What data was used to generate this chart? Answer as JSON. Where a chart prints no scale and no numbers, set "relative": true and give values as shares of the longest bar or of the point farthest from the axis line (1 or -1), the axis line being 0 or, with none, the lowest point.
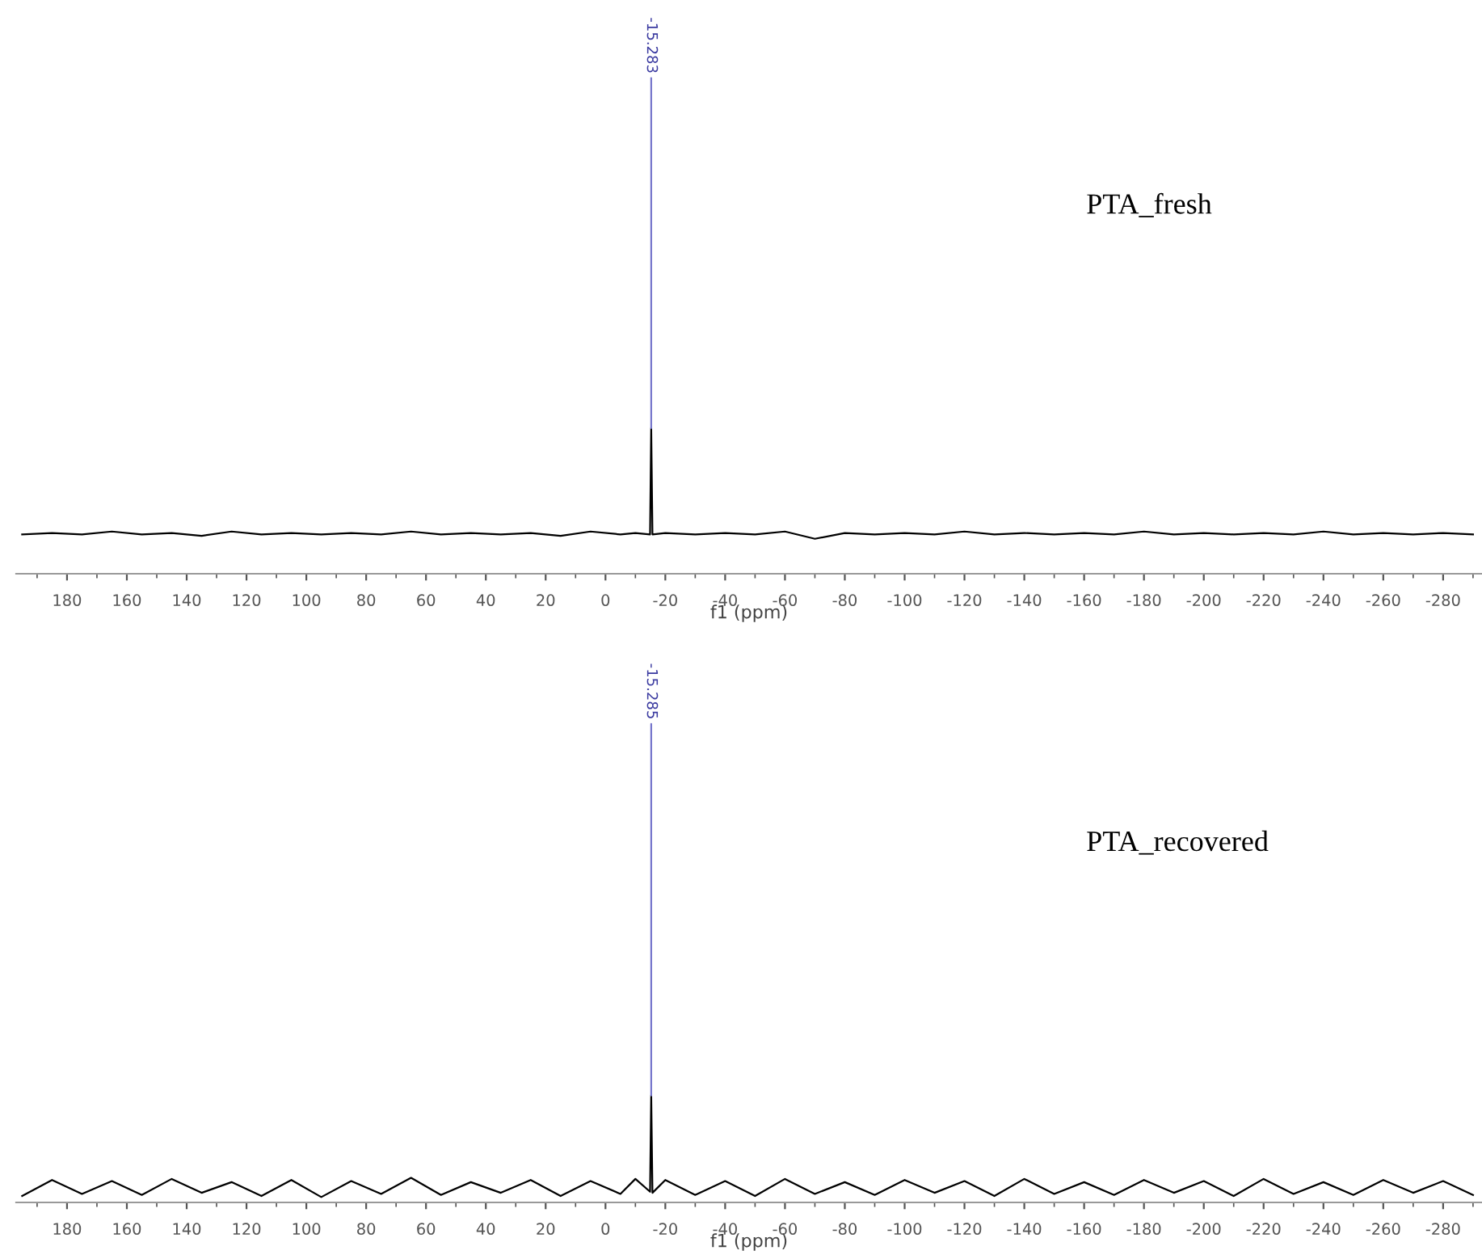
{
  "chart_data": [
    {
      "type": "line",
      "relative": true,
      "xlabel": "f1 (ppm)",
      "tick_labels": "x",
      "grid": false,
      "legend": false,
      "marker": "none",
      "line_style": "solid",
      "xlim": [
        197,
        -293
      ],
      "xticks": [
        180,
        160,
        140,
        120,
        100,
        80,
        60,
        40,
        20,
        0,
        -20,
        -40,
        -60,
        -80,
        -100,
        -120,
        -140,
        -160,
        -180,
        -200,
        -220,
        -240,
        -260,
        -280,
        {
          "value": 190,
          "label": null
        },
        {
          "value": 170,
          "label": null
        },
        {
          "value": 150,
          "label": null
        },
        {
          "value": 130,
          "label": null
        },
        {
          "value": 110,
          "label": null
        },
        {
          "value": 90,
          "label": null
        },
        {
          "value": 70,
          "label": null
        },
        {
          "value": 50,
          "label": null
        },
        {
          "value": 30,
          "label": null
        },
        {
          "value": 10,
          "label": null
        },
        {
          "value": -10,
          "label": null
        },
        {
          "value": -30,
          "label": null
        },
        {
          "value": -50,
          "label": null
        },
        {
          "value": -70,
          "label": null
        },
        {
          "value": -90,
          "label": null
        },
        {
          "value": -110,
          "label": null
        },
        {
          "value": -130,
          "label": null
        },
        {
          "value": -150,
          "label": null
        },
        {
          "value": -170,
          "label": null
        },
        {
          "value": -190,
          "label": null
        },
        {
          "value": -210,
          "label": null
        },
        {
          "value": -230,
          "label": null
        },
        {
          "value": -250,
          "label": null
        },
        {
          "value": -270,
          "label": null
        },
        {
          "value": -290,
          "label": null
        }
      ],
      "annotations": [
        "-15.283",
        "PTA_fresh"
      ],
      "series": [
        {
          "color": "#000000",
          "x": [
            195,
            185,
            175,
            165,
            155,
            145,
            135,
            125,
            115,
            105,
            95,
            85,
            75,
            65,
            55,
            45,
            35,
            25,
            15,
            5,
            -5,
            -10,
            -14.9,
            -15.283,
            -15.7,
            -20,
            -30,
            -40,
            -50,
            -60,
            -70,
            -80,
            -90,
            -100,
            -110,
            -120,
            -130,
            -140,
            -150,
            -160,
            -170,
            -180,
            -190,
            -200,
            -210,
            -220,
            -230,
            -240,
            -250,
            -260,
            -270,
            -280,
            -290
          ],
          "values": [
            0.27,
            0.28,
            0.27,
            0.29,
            0.27,
            0.28,
            0.26,
            0.29,
            0.27,
            0.28,
            0.27,
            0.28,
            0.27,
            0.29,
            0.27,
            0.28,
            0.27,
            0.28,
            0.26,
            0.29,
            0.27,
            0.28,
            0.27,
            1,
            0.27,
            0.28,
            0.27,
            0.28,
            0.27,
            0.29,
            0.24,
            0.28,
            0.27,
            0.28,
            0.27,
            0.29,
            0.27,
            0.28,
            0.27,
            0.28,
            0.27,
            0.29,
            0.27,
            0.28,
            0.27,
            0.28,
            0.27,
            0.29,
            0.27,
            0.28,
            0.27,
            0.28,
            0.27
          ]
        }
      ]
    },
    {
      "type": "line",
      "relative": true,
      "xlabel": "f1 (ppm)",
      "tick_labels": "x",
      "grid": false,
      "legend": false,
      "marker": "none",
      "line_style": "solid",
      "xlim": [
        197,
        -293
      ],
      "xticks": [
        180,
        160,
        140,
        120,
        100,
        80,
        60,
        40,
        20,
        0,
        -20,
        -40,
        -60,
        -80,
        -100,
        -120,
        -140,
        -160,
        -180,
        -200,
        -220,
        -240,
        -260,
        -280,
        {
          "value": 190,
          "label": null
        },
        {
          "value": 170,
          "label": null
        },
        {
          "value": 150,
          "label": null
        },
        {
          "value": 130,
          "label": null
        },
        {
          "value": 110,
          "label": null
        },
        {
          "value": 90,
          "label": null
        },
        {
          "value": 70,
          "label": null
        },
        {
          "value": 50,
          "label": null
        },
        {
          "value": 30,
          "label": null
        },
        {
          "value": 10,
          "label": null
        },
        {
          "value": -10,
          "label": null
        },
        {
          "value": -30,
          "label": null
        },
        {
          "value": -50,
          "label": null
        },
        {
          "value": -70,
          "label": null
        },
        {
          "value": -90,
          "label": null
        },
        {
          "value": -110,
          "label": null
        },
        {
          "value": -130,
          "label": null
        },
        {
          "value": -150,
          "label": null
        },
        {
          "value": -170,
          "label": null
        },
        {
          "value": -190,
          "label": null
        },
        {
          "value": -210,
          "label": null
        },
        {
          "value": -230,
          "label": null
        },
        {
          "value": -250,
          "label": null
        },
        {
          "value": -270,
          "label": null
        },
        {
          "value": -290,
          "label": null
        }
      ],
      "annotations": [
        "-15.285",
        "PTA_recovered"
      ],
      "series": [
        {
          "color": "#000000",
          "x": [
            195,
            185,
            175,
            165,
            155,
            145,
            135,
            125,
            115,
            105,
            95,
            85,
            75,
            65,
            55,
            45,
            35,
            25,
            15,
            5,
            -5,
            -10,
            -14.9,
            -15.285,
            -15.7,
            -20,
            -30,
            -40,
            -50,
            -60,
            -70,
            -80,
            -90,
            -100,
            -110,
            -120,
            -130,
            -140,
            -150,
            -160,
            -170,
            -180,
            -190,
            -200,
            -210,
            -220,
            -230,
            -240,
            -250,
            -260,
            -270,
            -280,
            -290
          ],
          "values": [
            0.06,
            0.21,
            0.08,
            0.2,
            0.07,
            0.22,
            0.09,
            0.19,
            0.06,
            0.21,
            0.05,
            0.2,
            0.08,
            0.23,
            0.07,
            0.19,
            0.09,
            0.21,
            0.06,
            0.2,
            0.08,
            0.22,
            0.1,
            1,
            0.09,
            0.21,
            0.07,
            0.2,
            0.06,
            0.22,
            0.08,
            0.19,
            0.07,
            0.21,
            0.09,
            0.2,
            0.06,
            0.22,
            0.08,
            0.19,
            0.07,
            0.21,
            0.09,
            0.2,
            0.06,
            0.22,
            0.08,
            0.19,
            0.07,
            0.21,
            0.09,
            0.2,
            0.07
          ]
        }
      ]
    }
  ]
}
